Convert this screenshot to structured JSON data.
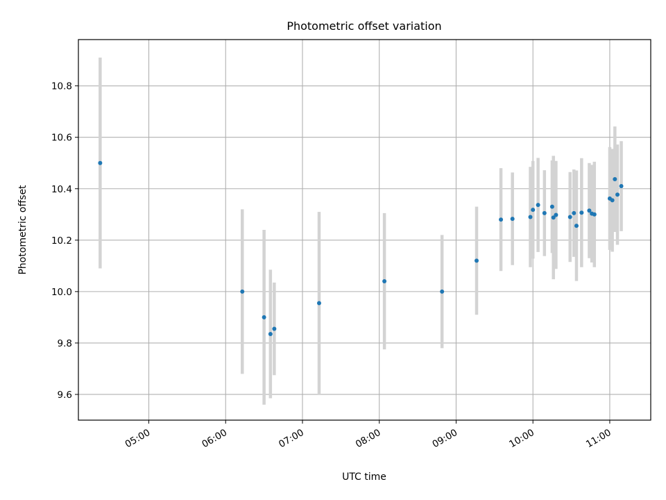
{
  "chart_data": {
    "type": "scatter",
    "title": "Photometric offset variation",
    "xlabel": "UTC time",
    "ylabel": "Photometric offset",
    "x_unit": "UTC time of day (HH:MM)",
    "xlim": [
      "04:05",
      "11:32"
    ],
    "ylim": [
      9.5,
      10.98
    ],
    "x_ticks": [
      "05:00",
      "06:00",
      "07:00",
      "08:00",
      "09:00",
      "10:00",
      "11:00"
    ],
    "y_ticks": [
      "9.6",
      "9.8",
      "10.0",
      "10.2",
      "10.4",
      "10.6",
      "10.8"
    ],
    "grid": true,
    "marker_color": "#1f77b4",
    "errorbar_color": "#d3d3d3",
    "series": [
      {
        "points": [
          {
            "x": "04:22",
            "y": 10.5,
            "err": 0.41
          },
          {
            "x": "06:13",
            "y": 10.0,
            "err": 0.32
          },
          {
            "x": "06:30",
            "y": 9.9,
            "err": 0.34
          },
          {
            "x": "06:35",
            "y": 9.835,
            "err": 0.25
          },
          {
            "x": "06:38",
            "y": 9.855,
            "err": 0.18
          },
          {
            "x": "07:13",
            "y": 9.955,
            "err": 0.355
          },
          {
            "x": "08:04",
            "y": 10.04,
            "err": 0.265
          },
          {
            "x": "08:49",
            "y": 10.0,
            "err": 0.22
          },
          {
            "x": "09:16",
            "y": 10.12,
            "err": 0.21
          },
          {
            "x": "09:35",
            "y": 10.28,
            "err": 0.2
          },
          {
            "x": "09:44",
            "y": 10.283,
            "err": 0.18
          },
          {
            "x": "09:58",
            "y": 10.29,
            "err": 0.195
          },
          {
            "x": "10:00",
            "y": 10.318,
            "err": 0.19
          },
          {
            "x": "10:04",
            "y": 10.337,
            "err": 0.183
          },
          {
            "x": "10:09",
            "y": 10.305,
            "err": 0.167
          },
          {
            "x": "10:15",
            "y": 10.33,
            "err": 0.18
          },
          {
            "x": "10:16",
            "y": 10.288,
            "err": 0.24
          },
          {
            "x": "10:18",
            "y": 10.298,
            "err": 0.21
          },
          {
            "x": "10:29",
            "y": 10.29,
            "err": 0.175
          },
          {
            "x": "10:32",
            "y": 10.305,
            "err": 0.17
          },
          {
            "x": "10:34",
            "y": 10.256,
            "err": 0.215
          },
          {
            "x": "10:38",
            "y": 10.307,
            "err": 0.212
          },
          {
            "x": "10:44",
            "y": 10.315,
            "err": 0.185
          },
          {
            "x": "10:46",
            "y": 10.303,
            "err": 0.19
          },
          {
            "x": "10:48",
            "y": 10.3,
            "err": 0.205
          },
          {
            "x": "11:00",
            "y": 10.362,
            "err": 0.2
          },
          {
            "x": "11:02",
            "y": 10.355,
            "err": 0.2
          },
          {
            "x": "11:04",
            "y": 10.437,
            "err": 0.205
          },
          {
            "x": "11:06",
            "y": 10.377,
            "err": 0.195
          },
          {
            "x": "11:09",
            "y": 10.41,
            "err": 0.175
          }
        ]
      }
    ]
  }
}
